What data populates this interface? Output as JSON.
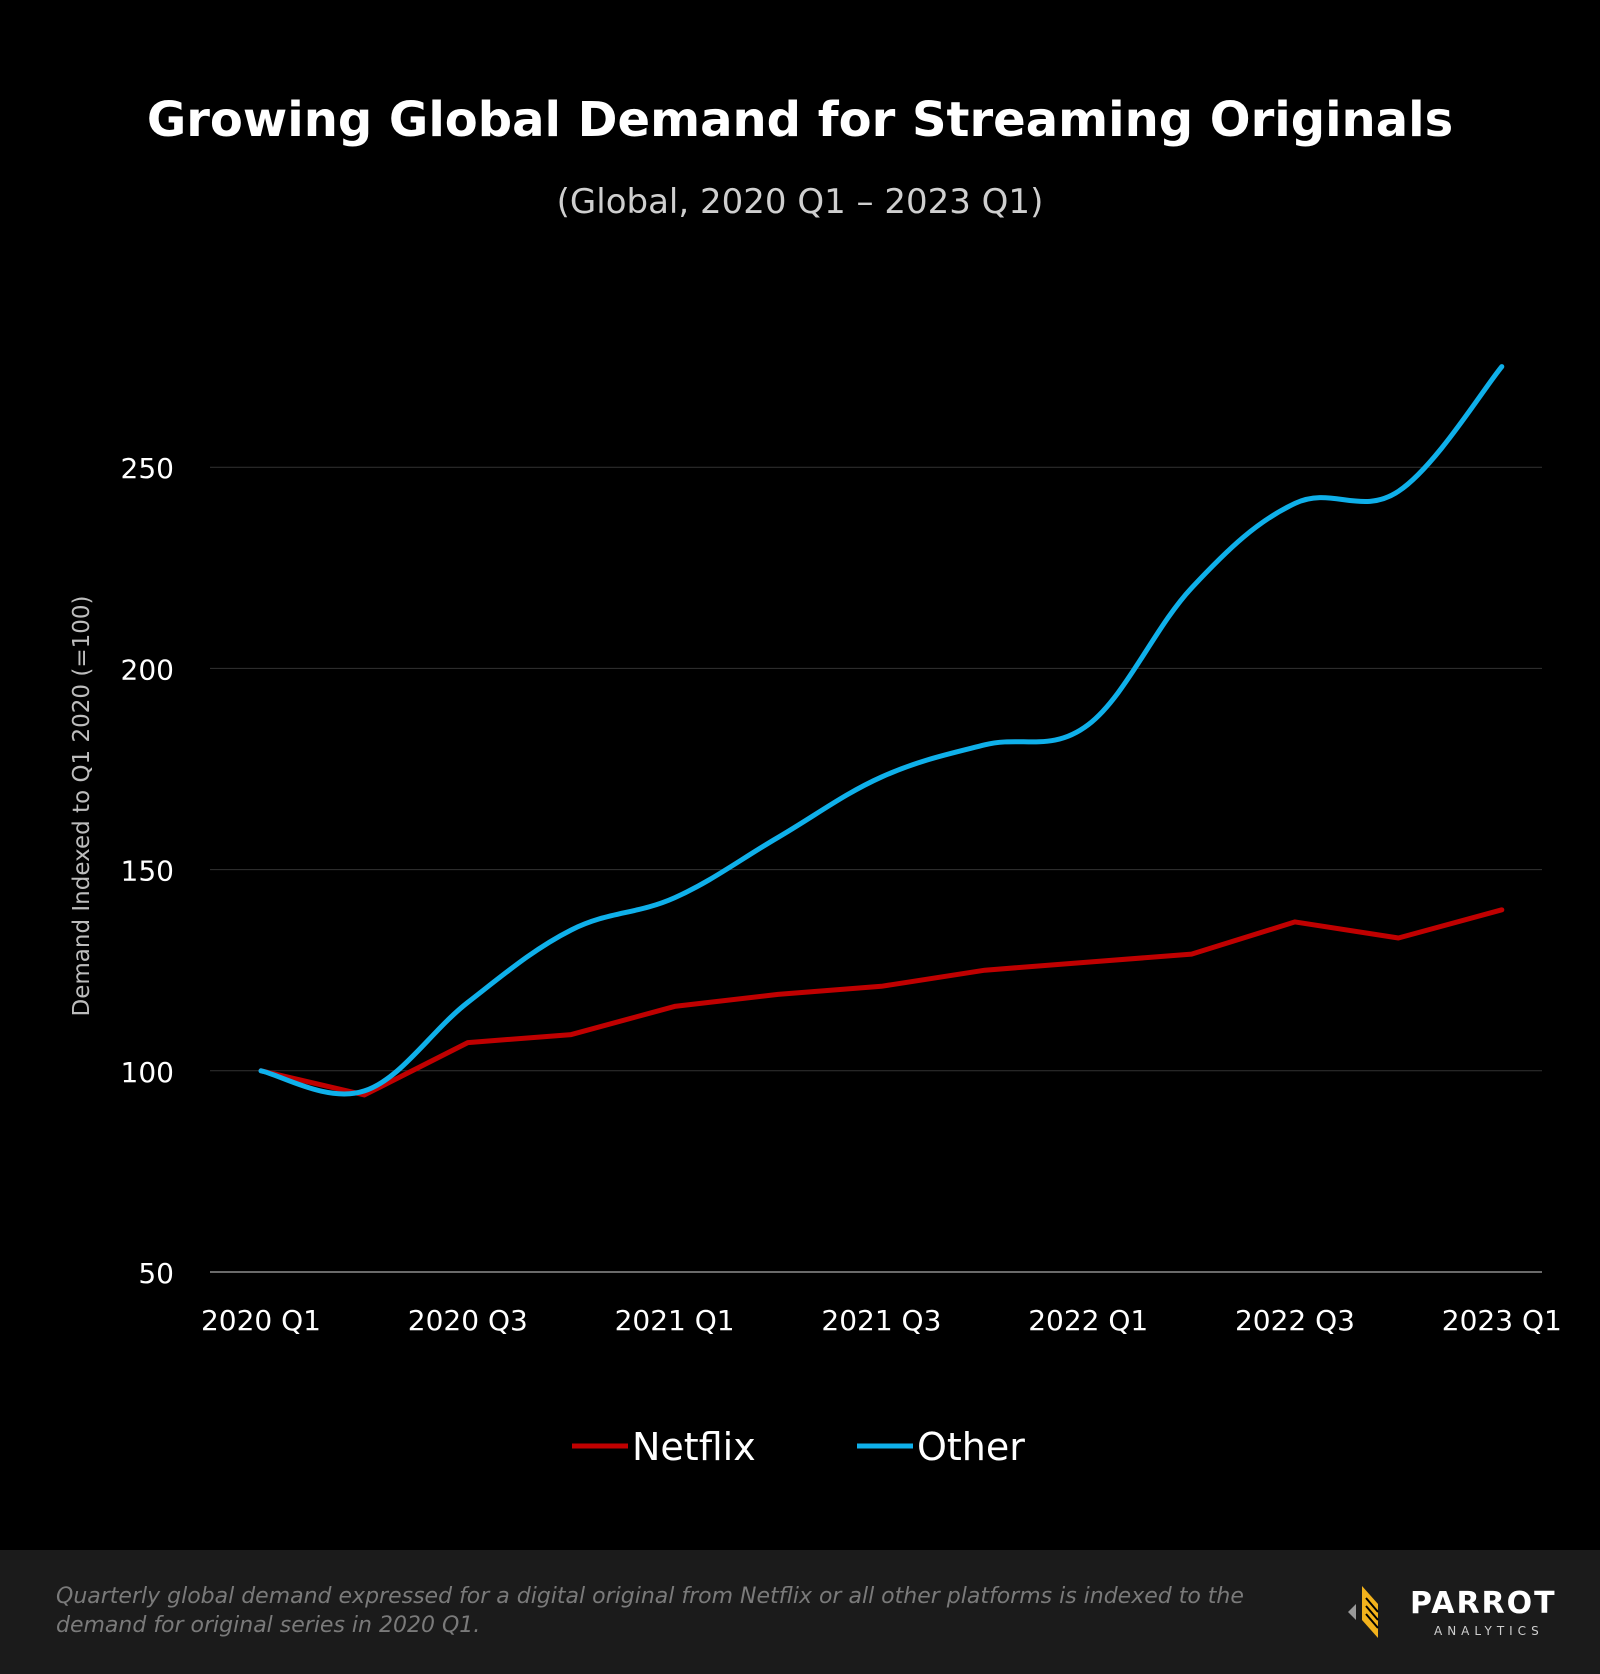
{
  "header": {
    "title": "Growing Global Demand for Streaming Originals",
    "subtitle": "(Global,  2020 Q1 –  2023 Q1)"
  },
  "chart_data": {
    "type": "line",
    "title": "Growing Global Demand for Streaming Originals",
    "subtitle": "(Global,  2020 Q1 –  2023 Q1)",
    "xlabel": "",
    "ylabel": "Demand Indexed to Q1 2020 (=100)",
    "ylim": [
      50,
      280
    ],
    "yticks": [
      50,
      100,
      150,
      200,
      250
    ],
    "grid": true,
    "categories": [
      "2020 Q1",
      "2020 Q2",
      "2020 Q3",
      "2020 Q4",
      "2021 Q1",
      "2021 Q2",
      "2021 Q3",
      "2021 Q4",
      "2022 Q1",
      "2022 Q2",
      "2022 Q3",
      "2022 Q4",
      "2023 Q1"
    ],
    "xtick_labels": [
      "2020 Q1",
      "2020 Q3",
      "2021 Q1",
      "2021 Q3",
      "2022 Q1",
      "2022 Q3",
      "2023 Q1"
    ],
    "series": [
      {
        "name": "Netflix",
        "color": "#c00000",
        "values": [
          100,
          94,
          107,
          109,
          116,
          119,
          121,
          125,
          127,
          129,
          137,
          133,
          140
        ]
      },
      {
        "name": "Other",
        "color": "#0fb0ea",
        "values": [
          100,
          95,
          117,
          135,
          143,
          158,
          173,
          181,
          186,
          220,
          241,
          244,
          275
        ]
      }
    ],
    "legend": "bottom-center"
  },
  "footer": {
    "note": "Quarterly global demand expressed for a digital original from Netflix or all other platforms is indexed to the demand for original series in 2020  Q1.",
    "logo_name": "PARROT",
    "logo_sub": "ANALYTICS"
  },
  "colors": {
    "background": "#000000",
    "footer_bg": "#1b1b1b",
    "grid": "#333333",
    "netflix": "#c00000",
    "other": "#0fb0ea"
  }
}
